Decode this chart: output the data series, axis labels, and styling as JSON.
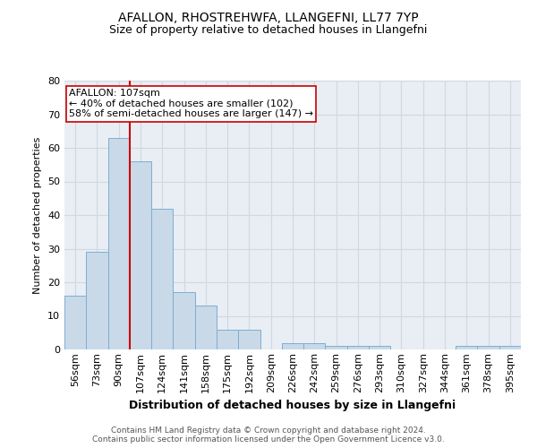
{
  "title": "AFALLON, RHOSTREHWFA, LLANGEFNI, LL77 7YP",
  "subtitle": "Size of property relative to detached houses in Llangefni",
  "xlabel": "Distribution of detached houses by size in Llangefni",
  "ylabel": "Number of detached properties",
  "footer_line1": "Contains HM Land Registry data © Crown copyright and database right 2024.",
  "footer_line2": "Contains public sector information licensed under the Open Government Licence v3.0.",
  "bar_labels": [
    "56sqm",
    "73sqm",
    "90sqm",
    "107sqm",
    "124sqm",
    "141sqm",
    "158sqm",
    "175sqm",
    "192sqm",
    "209sqm",
    "226sqm",
    "242sqm",
    "259sqm",
    "276sqm",
    "293sqm",
    "310sqm",
    "327sqm",
    "344sqm",
    "361sqm",
    "378sqm",
    "395sqm"
  ],
  "bar_values": [
    16,
    29,
    63,
    56,
    42,
    17,
    13,
    6,
    6,
    0,
    2,
    2,
    1,
    1,
    1,
    0,
    0,
    0,
    1,
    1,
    1
  ],
  "bar_color": "#c9d9e8",
  "bar_edgecolor": "#7bafd4",
  "annotation_line1": "AFALLON: 107sqm",
  "annotation_line2": "← 40% of detached houses are smaller (102)",
  "annotation_line3": "58% of semi-detached houses are larger (147) →",
  "marker_index": 3,
  "ylim": [
    0,
    80
  ],
  "yticks": [
    0,
    10,
    20,
    30,
    40,
    50,
    60,
    70,
    80
  ],
  "vline_color": "#cc0000",
  "annotation_box_facecolor": "#ffffff",
  "annotation_box_edgecolor": "#cc0000",
  "grid_color": "#d0d8e0",
  "background_color": "#e8eef4",
  "title_fontsize": 10,
  "subtitle_fontsize": 9,
  "ylabel_fontsize": 8,
  "xlabel_fontsize": 9,
  "tick_fontsize": 8,
  "footer_fontsize": 6.5,
  "annotation_fontsize": 8
}
